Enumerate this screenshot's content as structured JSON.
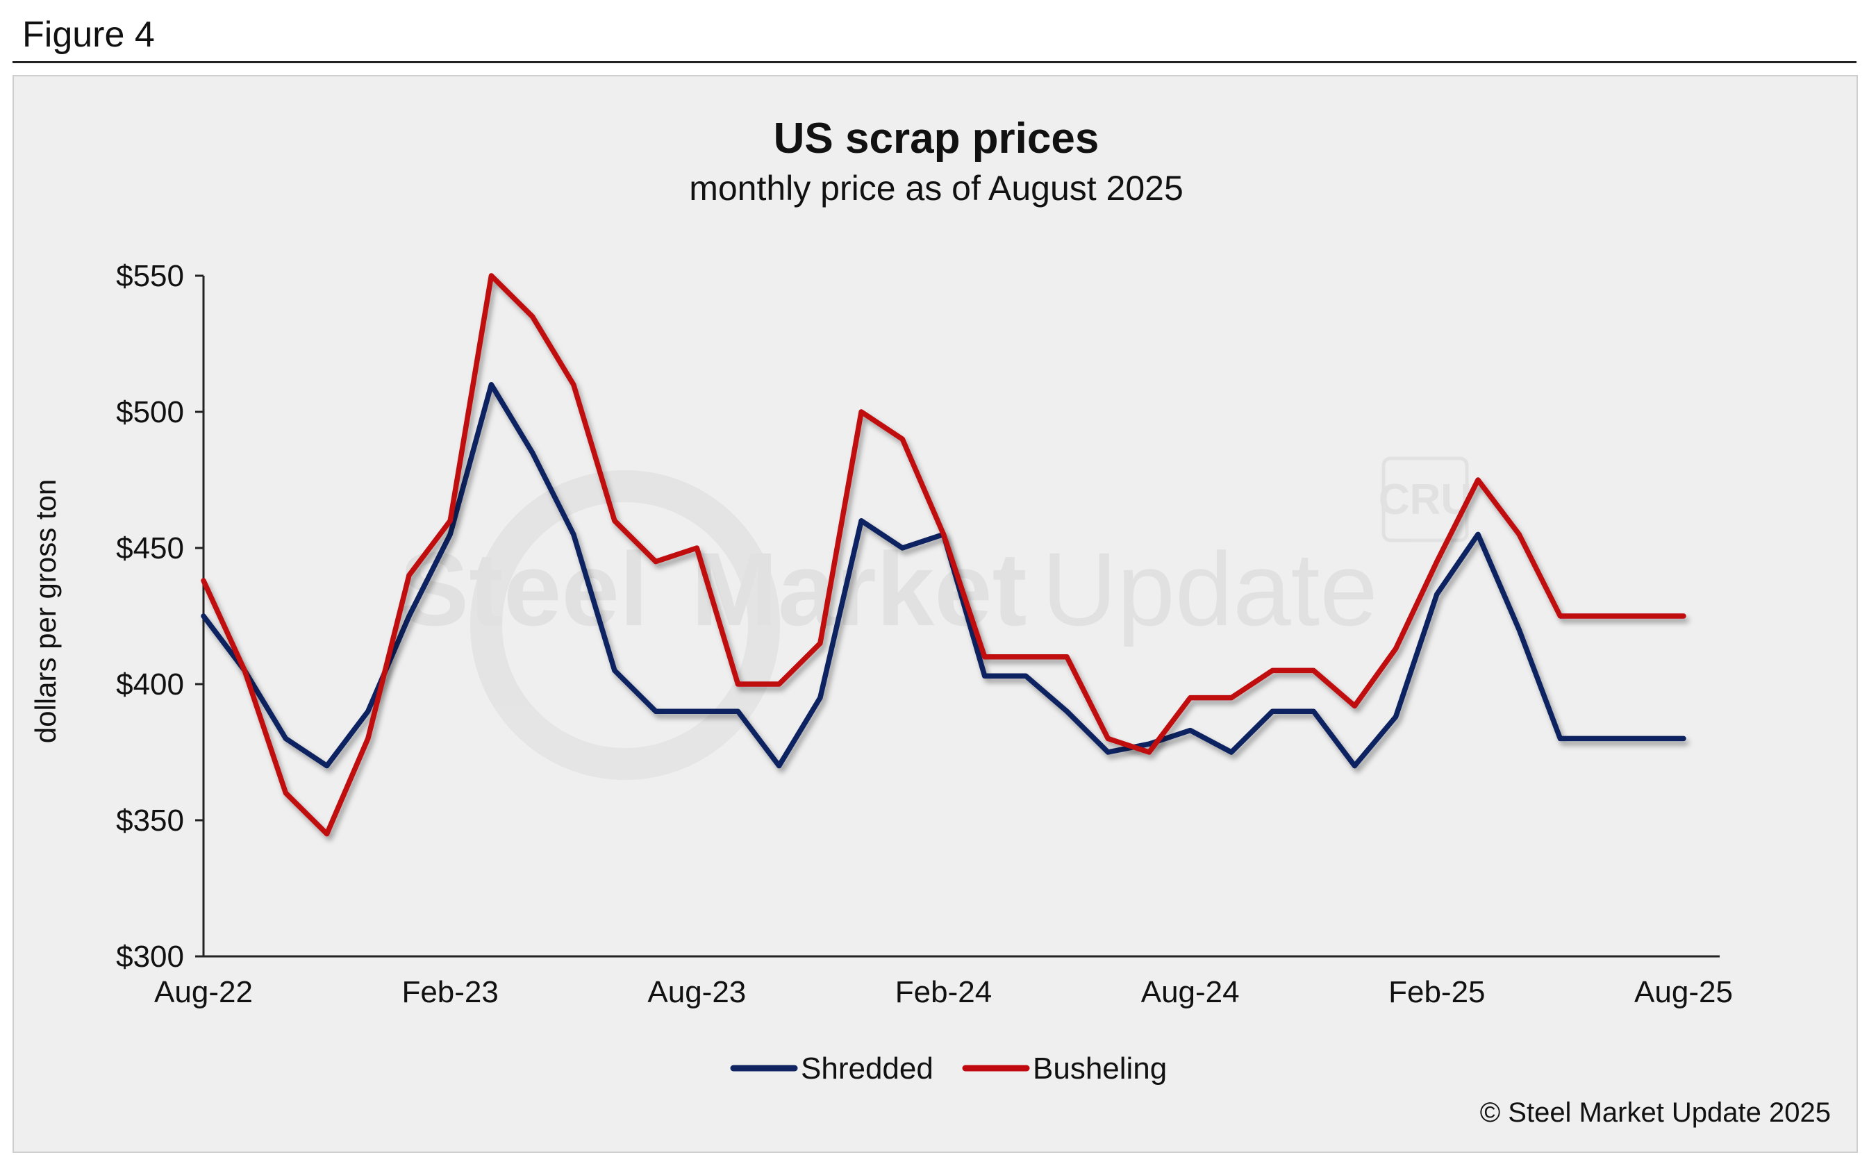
{
  "figure_label": "Figure 4",
  "colors": {
    "shredded": "#0f2461",
    "busheling": "#c0080f",
    "panel": "#efefef",
    "axis": "#222222"
  },
  "watermark": {
    "brand": "Steel Market Update",
    "word1": "Steel",
    "word2": "Market",
    "word3": "Update",
    "logo": "CRU"
  },
  "credit": "© Steel Market Update 2025",
  "chart_data": {
    "type": "line",
    "title": "US scrap prices",
    "subtitle": "monthly price as of August 2025",
    "ylabel": "dollars per  gross ton",
    "xlabel": "",
    "ylim": [
      300,
      550
    ],
    "yticks": [
      300,
      350,
      400,
      450,
      500,
      550
    ],
    "ytick_labels": [
      "$300",
      "$350",
      "$400",
      "$450",
      "$500",
      "$550"
    ],
    "x_count": 37,
    "xtick_indices": [
      0,
      6,
      12,
      18,
      24,
      30,
      36
    ],
    "xtick_labels": [
      "Aug-22",
      "Feb-23",
      "Aug-23",
      "Feb-24",
      "Aug-24",
      "Feb-25",
      "Aug-25"
    ],
    "legend_position": "bottom-center",
    "series": [
      {
        "name": "Shredded",
        "color": "#0f2461",
        "values": [
          425,
          405,
          380,
          370,
          390,
          425,
          455,
          510,
          485,
          455,
          405,
          390,
          390,
          390,
          370,
          395,
          460,
          450,
          455,
          403,
          403,
          390,
          375,
          378,
          383,
          375,
          390,
          390,
          370,
          388,
          433,
          455,
          420,
          380,
          380,
          380,
          380
        ]
      },
      {
        "name": "Busheling",
        "color": "#c0080f",
        "values": [
          438,
          405,
          360,
          345,
          380,
          440,
          460,
          550,
          535,
          510,
          460,
          445,
          450,
          400,
          400,
          415,
          500,
          490,
          455,
          410,
          410,
          410,
          380,
          375,
          395,
          395,
          405,
          405,
          392,
          413,
          445,
          475,
          455,
          425,
          425,
          425,
          425
        ]
      }
    ]
  }
}
